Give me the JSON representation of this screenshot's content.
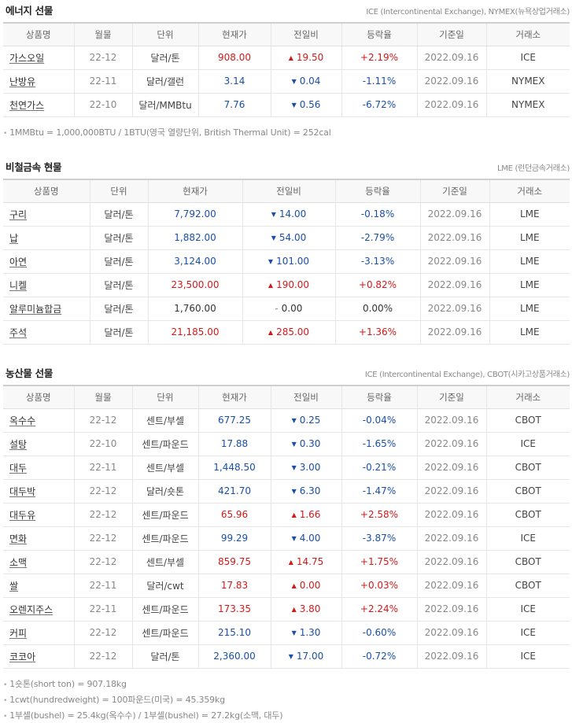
{
  "energy": {
    "title": "에너지 선물",
    "source": "ICE (Intercontinental Exchange), NYMEX(뉴욕상업거래소)",
    "headers": [
      "상품명",
      "월물",
      "단위",
      "현재가",
      "전일비",
      "등락율",
      "기준일",
      "거래소"
    ],
    "rows": [
      {
        "name": "가스오일",
        "month": "22-12",
        "unit": "달러/톤",
        "price": "908.00",
        "dir": "up",
        "change": "19.50",
        "rate": "+2.19%",
        "date": "2022.09.16",
        "exchange": "ICE"
      },
      {
        "name": "난방유",
        "month": "22-11",
        "unit": "달러/갤런",
        "price": "3.14",
        "dir": "down",
        "change": "0.04",
        "rate": "-1.11%",
        "date": "2022.09.16",
        "exchange": "NYMEX"
      },
      {
        "name": "천연가스",
        "month": "22-10",
        "unit": "달러/MMBtu",
        "price": "7.76",
        "dir": "down",
        "change": "0.56",
        "rate": "-6.72%",
        "date": "2022.09.16",
        "exchange": "NYMEX"
      }
    ],
    "notes": [
      "1MMBtu = 1,000,000BTU / 1BTU(영국 열량단위, British Thermal Unit) = 252cal"
    ]
  },
  "metals": {
    "title": "비철금속 현물",
    "source": "LME (런던금속거래소)",
    "headers": [
      "상품명",
      "단위",
      "현재가",
      "전일비",
      "등락율",
      "기준일",
      "거래소"
    ],
    "rows": [
      {
        "name": "구리",
        "unit": "달러/톤",
        "price": "7,792.00",
        "dir": "down",
        "change": "14.00",
        "rate": "-0.18%",
        "date": "2022.09.16",
        "exchange": "LME"
      },
      {
        "name": "납",
        "unit": "달러/톤",
        "price": "1,882.00",
        "dir": "down",
        "change": "54.00",
        "rate": "-2.79%",
        "date": "2022.09.16",
        "exchange": "LME"
      },
      {
        "name": "아연",
        "unit": "달러/톤",
        "price": "3,124.00",
        "dir": "down",
        "change": "101.00",
        "rate": "-3.13%",
        "date": "2022.09.16",
        "exchange": "LME"
      },
      {
        "name": "니켈",
        "unit": "달러/톤",
        "price": "23,500.00",
        "dir": "up",
        "change": "190.00",
        "rate": "+0.82%",
        "date": "2022.09.16",
        "exchange": "LME"
      },
      {
        "name": "알루미늄합금",
        "unit": "달러/톤",
        "price": "1,760.00",
        "dir": "flat",
        "change": "0.00",
        "rate": "0.00%",
        "date": "2022.09.16",
        "exchange": "LME"
      },
      {
        "name": "주석",
        "unit": "달러/톤",
        "price": "21,185.00",
        "dir": "up",
        "change": "285.00",
        "rate": "+1.36%",
        "date": "2022.09.16",
        "exchange": "LME"
      }
    ]
  },
  "agri": {
    "title": "농산물 선물",
    "source": "ICE (Intercontinental Exchange), CBOT(시카고상품거래소)",
    "headers": [
      "상품명",
      "월물",
      "단위",
      "현재가",
      "전일비",
      "등락율",
      "기준일",
      "거래소"
    ],
    "rows": [
      {
        "name": "옥수수",
        "month": "22-12",
        "unit": "센트/부셀",
        "price": "677.25",
        "dir": "down",
        "change": "0.25",
        "rate": "-0.04%",
        "date": "2022.09.16",
        "exchange": "CBOT"
      },
      {
        "name": "설탕",
        "month": "22-10",
        "unit": "센트/파운드",
        "price": "17.88",
        "dir": "down",
        "change": "0.30",
        "rate": "-1.65%",
        "date": "2022.09.16",
        "exchange": "ICE"
      },
      {
        "name": "대두",
        "month": "22-11",
        "unit": "센트/부셀",
        "price": "1,448.50",
        "dir": "down",
        "change": "3.00",
        "rate": "-0.21%",
        "date": "2022.09.16",
        "exchange": "CBOT"
      },
      {
        "name": "대두박",
        "month": "22-12",
        "unit": "달러/숏톤",
        "price": "421.70",
        "dir": "down",
        "change": "6.30",
        "rate": "-1.47%",
        "date": "2022.09.16",
        "exchange": "CBOT"
      },
      {
        "name": "대두유",
        "month": "22-12",
        "unit": "센트/파운드",
        "price": "65.96",
        "dir": "up",
        "change": "1.66",
        "rate": "+2.58%",
        "date": "2022.09.16",
        "exchange": "CBOT"
      },
      {
        "name": "면화",
        "month": "22-12",
        "unit": "센트/파운드",
        "price": "99.29",
        "dir": "down",
        "change": "4.00",
        "rate": "-3.87%",
        "date": "2022.09.16",
        "exchange": "ICE"
      },
      {
        "name": "소맥",
        "month": "22-12",
        "unit": "센트/부셀",
        "price": "859.75",
        "dir": "up",
        "change": "14.75",
        "rate": "+1.75%",
        "date": "2022.09.16",
        "exchange": "CBOT"
      },
      {
        "name": "쌀",
        "month": "22-11",
        "unit": "달러/cwt",
        "price": "17.83",
        "dir": "up",
        "change": "0.00",
        "rate": "+0.03%",
        "date": "2022.09.16",
        "exchange": "CBOT"
      },
      {
        "name": "오렌지주스",
        "month": "22-11",
        "unit": "센트/파운드",
        "price": "173.35",
        "dir": "up",
        "change": "3.80",
        "rate": "+2.24%",
        "date": "2022.09.16",
        "exchange": "ICE"
      },
      {
        "name": "커피",
        "month": "22-12",
        "unit": "센트/파운드",
        "price": "215.10",
        "dir": "down",
        "change": "1.30",
        "rate": "-0.60%",
        "date": "2022.09.16",
        "exchange": "ICE"
      },
      {
        "name": "코코아",
        "month": "22-12",
        "unit": "달러/톤",
        "price": "2,360.00",
        "dir": "down",
        "change": "17.00",
        "rate": "-0.72%",
        "date": "2022.09.16",
        "exchange": "ICE"
      }
    ],
    "notes": [
      "1숏톤(short ton) = 907.18kg",
      "1cwt(hundredweight) = 100파운드(미국) = 45.359kg",
      "1부셀(bushel) = 25.4kg(옥수수) / 1부셀(bushel) = 27.2kg(소맥, 대두)"
    ]
  },
  "arrows": {
    "up": "▲",
    "down": "▼",
    "flat": "–"
  },
  "colors": {
    "up": "#d21a1a",
    "down": "#1a4fa8",
    "flat": "#333333"
  },
  "icons": {
    "note_bullet": "bullet-dot-icon",
    "rise": "triangle-up-icon",
    "fall": "triangle-down-icon",
    "unchanged": "dash-icon"
  }
}
